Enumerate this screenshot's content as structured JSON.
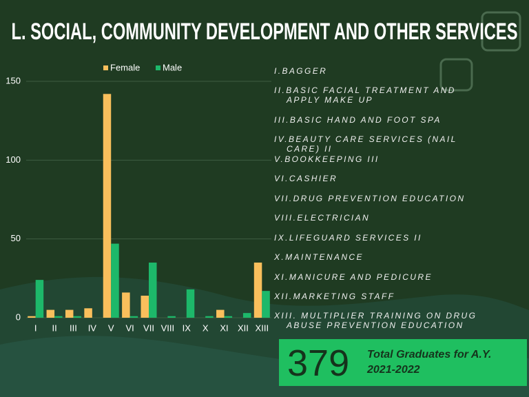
{
  "chart_data": {
    "type": "bar",
    "title": "L. SOCIAL, COMMUNITY DEVELOPMENT AND OTHER SERVICES",
    "categories": [
      "I",
      "II",
      "III",
      "IV",
      "V",
      "VI",
      "VII",
      "VIII",
      "IX",
      "X",
      "XI",
      "XII",
      "XIII"
    ],
    "series": [
      {
        "name": "Female",
        "color": "#f9bf5c",
        "values": [
          1,
          5,
          5,
          6,
          142,
          16,
          14,
          0,
          0,
          0,
          5,
          0,
          35
        ]
      },
      {
        "name": "Male",
        "color": "#1db86a",
        "values": [
          24,
          1,
          1,
          0,
          47,
          1,
          35,
          1,
          18,
          1,
          1,
          3,
          17
        ]
      }
    ],
    "ylim": [
      0,
      150
    ],
    "yticks": [
      0,
      50,
      100,
      150
    ],
    "grid": true,
    "category_key": [
      "I.BAGGER",
      "II.BASIC FACIAL TREATMENT AND APPLY MAKE UP",
      "III.BASIC HAND AND FOOT SPA",
      "IV.BEAUTY CARE SERVICES (NAIL CARE) II",
      "V.BOOKKEEPING III",
      "VI.CASHIER",
      "VII.DRUG PREVENTION EDUCATION",
      "VIII.ELECTRICIAN",
      "IX.LIFEGUARD SERVICES II",
      "X.MAINTENANCE",
      "XI.MANICURE AND PEDICURE",
      "XII.MARKETING STAFF",
      "XIII. MULTIPLIER TRAINING ON DRUG ABUSE PREVENTION EDUCATION"
    ],
    "total": {
      "value": "379",
      "label": "Total Graduates for A.Y. 2021-2022"
    }
  }
}
